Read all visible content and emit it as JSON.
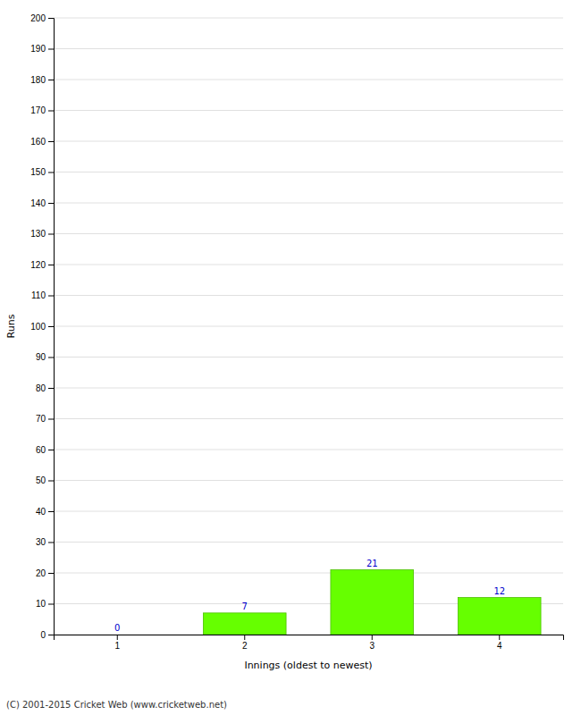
{
  "chart_data": {
    "type": "bar",
    "categories": [
      1,
      2,
      3,
      4
    ],
    "values": [
      0,
      7,
      21,
      12
    ],
    "color": "#66ff00",
    "xlabel": "Innings (oldest to newest)",
    "ylabel": "Runs",
    "ylim": [
      0,
      200
    ],
    "yticks": [
      0,
      10,
      20,
      30,
      40,
      50,
      60,
      70,
      80,
      90,
      100,
      110,
      120,
      130,
      140,
      150,
      160,
      170,
      180,
      190,
      200
    ],
    "grid": true,
    "data_labels": true,
    "footer": "(C) 2001-2015 Cricket Web (www.cricketweb.net)"
  }
}
